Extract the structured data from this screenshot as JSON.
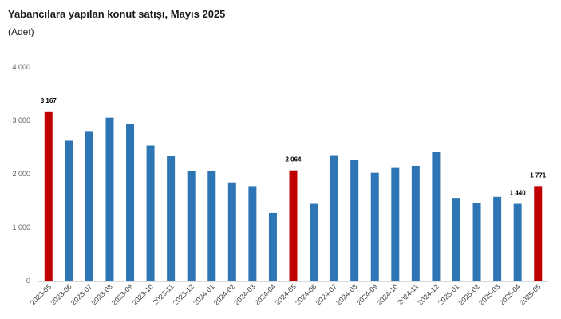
{
  "chart_data": {
    "type": "bar",
    "title": "Yabancılara yapılan konut satışı, Mayıs 2025",
    "subtitle": "(Adet)",
    "ylim": [
      0,
      4000
    ],
    "yticks": [
      "0",
      "1 000",
      "2 000",
      "3 000",
      "4 000"
    ],
    "ytick_values": [
      0,
      1000,
      2000,
      3000,
      4000
    ],
    "grid": false,
    "categories": [
      "2023-05",
      "2023-06",
      "2023-07",
      "2023-08",
      "2023-09",
      "2023-10",
      "2023-11",
      "2023-12",
      "2024-01",
      "2024-02",
      "2024-03",
      "2024-04",
      "2024-05",
      "2024-06",
      "2024-07",
      "2024-08",
      "2024-09",
      "2024-10",
      "2024-11",
      "2024-12",
      "2025-01",
      "2025-02",
      "2025-03",
      "2025-04",
      "2025-05"
    ],
    "values": [
      3167,
      2620,
      2800,
      3050,
      2930,
      2530,
      2340,
      2060,
      2060,
      1840,
      1770,
      1270,
      2064,
      1440,
      2350,
      2260,
      2020,
      2110,
      2150,
      2410,
      1550,
      1460,
      1570,
      1440,
      1771
    ],
    "colors": {
      "default": "#2e75b6",
      "highlight": "#c00000"
    },
    "highlight_indices": [
      0,
      12,
      24
    ],
    "data_labels": [
      {
        "index": 0,
        "text": "3 167"
      },
      {
        "index": 12,
        "text": "2 064"
      },
      {
        "index": 23,
        "text": "1 440"
      },
      {
        "index": 24,
        "text": "1 771"
      }
    ]
  }
}
